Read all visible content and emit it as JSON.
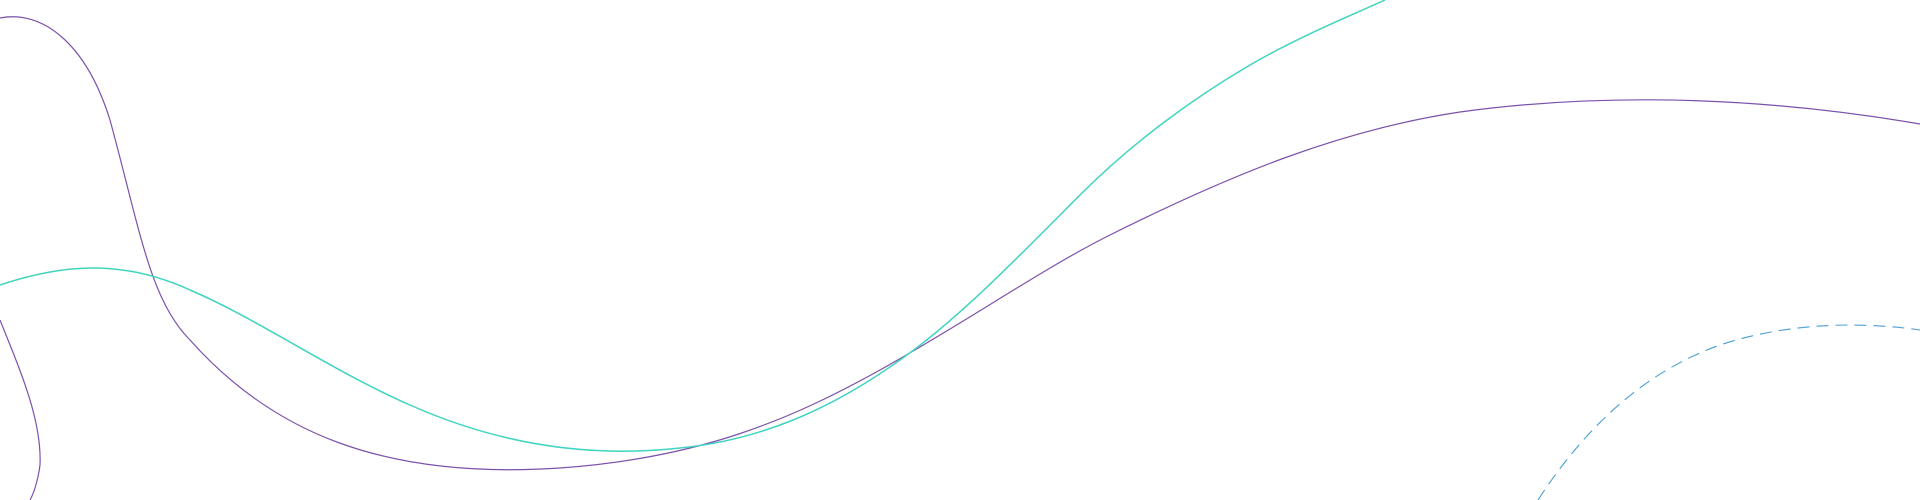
{
  "colors": {
    "background": "#ffffff",
    "purple_line": "#7b52ab",
    "teal_line": "#3fd4bf",
    "blue_dashed_line": "#4a9fd6"
  },
  "elements": {
    "purple_curve": "decorative-line",
    "teal_curve": "decorative-line",
    "dashed_arc": "decorative-dashed-line"
  }
}
